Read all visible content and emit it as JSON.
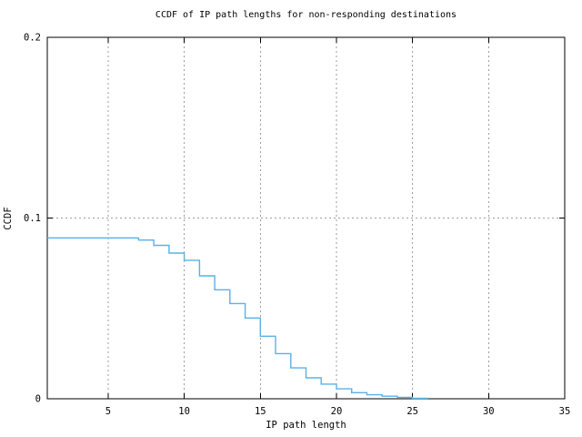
{
  "figure": {
    "title": "CCDF of IP path lengths for non-responding destinations",
    "x_axis_label": "IP path length",
    "y_axis_label": "CCDF"
  },
  "chart_data": {
    "type": "line",
    "line_style": "steps-post",
    "title": "CCDF of IP path lengths for non-responding destinations",
    "xlabel": "IP path length",
    "ylabel": "CCDF",
    "xlim": [
      1,
      35
    ],
    "ylim": [
      0,
      0.2
    ],
    "xticks": [
      {
        "v": 5,
        "label": "5"
      },
      {
        "v": 10,
        "label": "10"
      },
      {
        "v": 15,
        "label": "15"
      },
      {
        "v": 20,
        "label": "20"
      },
      {
        "v": 25,
        "label": "25"
      },
      {
        "v": 30,
        "label": "30"
      },
      {
        "v": 35,
        "label": "35"
      }
    ],
    "yticks": [
      {
        "v": 0,
        "label": "0"
      },
      {
        "v": 0.1,
        "label": "0.1"
      },
      {
        "v": 0.2,
        "label": "0.2"
      }
    ],
    "grid": {
      "x_at": [
        5,
        10,
        15,
        20,
        25,
        30
      ],
      "y_at": [
        0.1
      ],
      "style": "dashed"
    },
    "legend_position": "none",
    "series": [
      {
        "name": "CCDF of IP path length, non-responding destinations",
        "color": "#58b2e6",
        "points": [
          [
            1,
            0.089
          ],
          [
            7,
            0.0878
          ],
          [
            8,
            0.0849
          ],
          [
            9,
            0.0806
          ],
          [
            10,
            0.0766
          ],
          [
            11,
            0.068
          ],
          [
            12,
            0.0603
          ],
          [
            13,
            0.0527
          ],
          [
            14,
            0.0447
          ],
          [
            15,
            0.0346
          ],
          [
            16,
            0.025
          ],
          [
            17,
            0.0171
          ],
          [
            18,
            0.0116
          ],
          [
            19,
            0.0081
          ],
          [
            20,
            0.0055
          ],
          [
            21,
            0.0034
          ],
          [
            22,
            0.0022
          ],
          [
            23,
            0.0014
          ],
          [
            24,
            0.0008
          ],
          [
            25,
            0.0003
          ],
          [
            26,
            0
          ]
        ]
      }
    ]
  },
  "colors": {
    "background": "#ffffff",
    "axis": "#000000",
    "grid": "#9e9e9e",
    "curve": "#58b2e6",
    "text": "#000000"
  }
}
